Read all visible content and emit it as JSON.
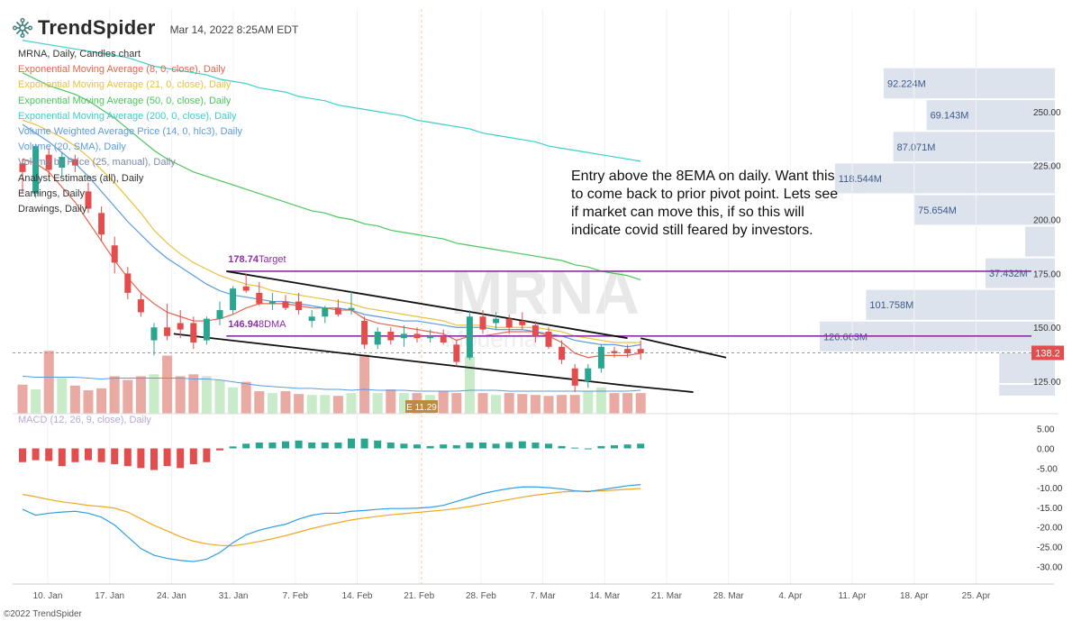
{
  "header": {
    "brand": "TrendSpider",
    "logo_icon": "trendspider-logo-icon",
    "datetime": "Mar 14, 2022 8:25AM EDT"
  },
  "legend": [
    {
      "text": "MRNA, Daily, Candles chart",
      "color": "#333333"
    },
    {
      "text": "Exponential Moving Average (8, 0, close), Daily",
      "color": "#e8644b"
    },
    {
      "text": "Exponential Moving Average (21, 0, close), Daily",
      "color": "#e8c23c"
    },
    {
      "text": "Exponential Moving Average (50, 0, close), Daily",
      "color": "#4cc65e"
    },
    {
      "text": "Exponential Moving Average (200, 0, close), Daily",
      "color": "#3ad1c6"
    },
    {
      "text": "Volume Weighted Average Price (14, 0, hlc3), Daily",
      "color": "#5b9be0"
    },
    {
      "text": "Volume (20, SMA), Daily",
      "color": "#5b9be0"
    },
    {
      "text": "Volume by Price (25, manual), Daily",
      "color": "#7a8aa8"
    },
    {
      "text": "Analyst Estimates (all), Daily",
      "color": "#333333"
    },
    {
      "text": "Earnings, Daily",
      "color": "#333333"
    },
    {
      "text": "Drawings, Daily",
      "color": "#333333"
    }
  ],
  "annotation": "Entry above the 8EMA on daily. Want this to come back to prior pivot point. Lets see if market can move this, if so this will indicate covid still feared by investors.",
  "watermark": {
    "symbol": "MRNA",
    "name": "Moderna"
  },
  "macd_label": "MACD (12, 26, 9, close), Daily",
  "copyright": "©2022 TrendSpider",
  "colors": {
    "up": "#2aa58f",
    "down": "#e34d4d",
    "vol_up": "#c9ebc9",
    "vol_down": "#e8aaa2",
    "purple": "#8b2fa3",
    "vbp": "#dde3ec"
  },
  "chart_data": {
    "type": "candlestick",
    "ylim": [
      110,
      290
    ],
    "price_ticks": [
      125,
      150,
      175,
      200,
      225,
      250
    ],
    "price_tick_labels": [
      "125.00",
      "150.00",
      "175.00",
      "200.00",
      "225.00",
      "250.00"
    ],
    "last_price": 138.2,
    "last_price_label": "138.2",
    "x_labels": [
      "10. Jan",
      "17. Jan",
      "24. Jan",
      "31. Jan",
      "7. Feb",
      "14. Feb",
      "21. Feb",
      "28. Feb",
      "7. Mar",
      "14. Mar",
      "21. Mar",
      "28. Mar",
      "4. Apr",
      "11. Apr",
      "18. Apr",
      "25. Apr"
    ],
    "candles": [
      {
        "o": 226,
        "h": 228,
        "l": 212,
        "c": 222
      },
      {
        "o": 212,
        "h": 235,
        "l": 210,
        "c": 234
      },
      {
        "o": 230,
        "h": 233,
        "l": 220,
        "c": 223
      },
      {
        "o": 224,
        "h": 231,
        "l": 220,
        "c": 229
      },
      {
        "o": 228,
        "h": 230,
        "l": 222,
        "c": 225
      },
      {
        "o": 213,
        "h": 217,
        "l": 203,
        "c": 205
      },
      {
        "o": 203,
        "h": 206,
        "l": 190,
        "c": 193
      },
      {
        "o": 188,
        "h": 192,
        "l": 175,
        "c": 180
      },
      {
        "o": 175,
        "h": 178,
        "l": 163,
        "c": 166
      },
      {
        "o": 163,
        "h": 166,
        "l": 155,
        "c": 157
      },
      {
        "o": 144,
        "h": 152,
        "l": 137,
        "c": 150
      },
      {
        "o": 150,
        "h": 161,
        "l": 144,
        "c": 146
      },
      {
        "o": 152,
        "h": 158,
        "l": 145,
        "c": 149
      },
      {
        "o": 152,
        "h": 155,
        "l": 140,
        "c": 143
      },
      {
        "o": 144,
        "h": 155,
        "l": 142,
        "c": 154
      },
      {
        "o": 154,
        "h": 162,
        "l": 151,
        "c": 158
      },
      {
        "o": 158,
        "h": 169,
        "l": 156,
        "c": 168
      },
      {
        "o": 169,
        "h": 175,
        "l": 166,
        "c": 167
      },
      {
        "o": 166,
        "h": 171,
        "l": 160,
        "c": 161
      },
      {
        "o": 161,
        "h": 166,
        "l": 158,
        "c": 162
      },
      {
        "o": 162,
        "h": 165,
        "l": 158,
        "c": 159
      },
      {
        "o": 162,
        "h": 166,
        "l": 156,
        "c": 158
      },
      {
        "o": 153,
        "h": 158,
        "l": 150,
        "c": 155
      },
      {
        "o": 155,
        "h": 160,
        "l": 152,
        "c": 159
      },
      {
        "o": 159,
        "h": 163,
        "l": 155,
        "c": 156
      },
      {
        "o": 158,
        "h": 167,
        "l": 156,
        "c": 159
      },
      {
        "o": 153,
        "h": 155,
        "l": 140,
        "c": 142
      },
      {
        "o": 142,
        "h": 150,
        "l": 140,
        "c": 148
      },
      {
        "o": 148,
        "h": 150,
        "l": 142,
        "c": 144
      },
      {
        "o": 145,
        "h": 151,
        "l": 141,
        "c": 147
      },
      {
        "o": 147,
        "h": 150,
        "l": 143,
        "c": 145
      },
      {
        "o": 145,
        "h": 149,
        "l": 143,
        "c": 146
      },
      {
        "o": 146,
        "h": 149,
        "l": 142,
        "c": 143
      },
      {
        "o": 142,
        "h": 144,
        "l": 132,
        "c": 134
      },
      {
        "o": 136,
        "h": 158,
        "l": 135,
        "c": 155
      },
      {
        "o": 155,
        "h": 158,
        "l": 147,
        "c": 149
      },
      {
        "o": 152,
        "h": 157,
        "l": 149,
        "c": 154
      },
      {
        "o": 154,
        "h": 156,
        "l": 147,
        "c": 150
      },
      {
        "o": 153,
        "h": 157,
        "l": 149,
        "c": 151
      },
      {
        "o": 151,
        "h": 153,
        "l": 143,
        "c": 146
      },
      {
        "o": 148,
        "h": 150,
        "l": 140,
        "c": 141
      },
      {
        "o": 141,
        "h": 144,
        "l": 133,
        "c": 135
      },
      {
        "o": 131,
        "h": 133,
        "l": 120,
        "c": 123
      },
      {
        "o": 125,
        "h": 133,
        "l": 122,
        "c": 131
      },
      {
        "o": 131,
        "h": 142,
        "l": 129,
        "c": 141
      },
      {
        "o": 139,
        "h": 141,
        "l": 136,
        "c": 138
      },
      {
        "o": 140,
        "h": 142,
        "l": 136,
        "c": 138
      },
      {
        "o": 140,
        "h": 144,
        "l": 135,
        "c": 138
      }
    ],
    "ema8": [
      228,
      226,
      222,
      215,
      208,
      199,
      190,
      181,
      173,
      166,
      161,
      157,
      155,
      153,
      153,
      154,
      156,
      159,
      161,
      161,
      161,
      160,
      159,
      159,
      158,
      158,
      154,
      152,
      151,
      150,
      149,
      148,
      147,
      144,
      146,
      146,
      147,
      148,
      148,
      148,
      146,
      143,
      138,
      136,
      137,
      137,
      137,
      138
    ],
    "ema21": [
      246,
      244,
      241,
      238,
      234,
      229,
      223,
      217,
      210,
      203,
      195,
      189,
      184,
      180,
      177,
      174,
      172,
      170,
      169,
      167,
      166,
      165,
      164,
      163,
      162,
      161,
      159,
      158,
      157,
      156,
      155,
      154,
      153,
      151,
      151,
      151,
      150,
      150,
      150,
      150,
      149,
      148,
      146,
      145,
      144,
      143,
      143,
      143
    ],
    "ema50": [
      268,
      265,
      262,
      260,
      258,
      255,
      251,
      247,
      242,
      237,
      232,
      228,
      225,
      222,
      220,
      218,
      216,
      214,
      212,
      210,
      208,
      206,
      204,
      203,
      201,
      200,
      198,
      197,
      195,
      194,
      193,
      192,
      191,
      189,
      188,
      187,
      186,
      185,
      184,
      183,
      182,
      181,
      179,
      178,
      176,
      175,
      174,
      172
    ],
    "ema200": [
      283,
      282,
      281,
      280,
      279,
      278,
      277,
      276,
      275,
      273,
      271,
      270,
      269,
      268,
      267,
      265,
      264,
      263,
      261,
      260,
      259,
      257,
      256,
      255,
      253,
      252,
      251,
      250,
      249,
      248,
      246,
      245,
      244,
      243,
      242,
      240,
      239,
      238,
      237,
      236,
      234,
      233,
      232,
      231,
      230,
      229,
      228,
      227
    ],
    "vwap": [
      244,
      240,
      236,
      231,
      226,
      220,
      213,
      206,
      199,
      193,
      187,
      182,
      178,
      174,
      170,
      167,
      165,
      164,
      163,
      162,
      162,
      161,
      160,
      159,
      159,
      158,
      156,
      155,
      154,
      153,
      153,
      152,
      151,
      150,
      150,
      150,
      149,
      149,
      149,
      148,
      147,
      146,
      144,
      143,
      142,
      142,
      141,
      142
    ],
    "volume": {
      "values": [
        31,
        26,
        67,
        38,
        30,
        25,
        27,
        40,
        36,
        40,
        42,
        62,
        40,
        42,
        40,
        36,
        28,
        34,
        24,
        22,
        24,
        21,
        20,
        20,
        19,
        22,
        63,
        22,
        26,
        22,
        22,
        20,
        24,
        22,
        61,
        22,
        20,
        22,
        21,
        20,
        19,
        20,
        20,
        24,
        28,
        22,
        22,
        22
      ],
      "sma": [
        40,
        39,
        39,
        39,
        39,
        38,
        37,
        38,
        38,
        38,
        38,
        38,
        38,
        37,
        37,
        36,
        34,
        32,
        30,
        29,
        28,
        27,
        27,
        26,
        26,
        25,
        26,
        25,
        25,
        25,
        24,
        24,
        24,
        24,
        25,
        25,
        25,
        24,
        24,
        24,
        24,
        24,
        24,
        24,
        24,
        24,
        24,
        25
      ],
      "ylim": [
        0,
        75
      ]
    },
    "volume_by_price": [
      {
        "label": "92.224M",
        "value": 92.224,
        "p_low": 255.7,
        "p_high": 270.5
      },
      {
        "label": "69.143M",
        "value": 69.143,
        "p_low": 241.0,
        "p_high": 255.7
      },
      {
        "label": "87.071M",
        "value": 87.071,
        "p_low": 226.4,
        "p_high": 241.0
      },
      {
        "label": "118.544M",
        "value": 118.544,
        "p_low": 211.7,
        "p_high": 226.4
      },
      {
        "label": "75.654M",
        "value": 75.654,
        "p_low": 197.1,
        "p_high": 211.7
      },
      {
        "label": "",
        "value": 16,
        "p_low": 182.4,
        "p_high": 197.1
      },
      {
        "label": "37.432M",
        "value": 37.432,
        "p_low": 167.8,
        "p_high": 182.4
      },
      {
        "label": "101.758M",
        "value": 101.758,
        "p_low": 153.1,
        "p_high": 167.8
      },
      {
        "label": "126.663M",
        "value": 126.663,
        "p_low": 138.5,
        "p_high": 153.1
      },
      {
        "label": "",
        "value": 30,
        "p_low": 123.8,
        "p_high": 138.5
      },
      {
        "label": "",
        "value": 30,
        "p_low": 118.0,
        "p_high": 123.8
      }
    ],
    "hlines": [
      {
        "price": 176,
        "label": "178.74",
        "suffix": "Target",
        "from_index": 15.5
      },
      {
        "price": 146,
        "label": "146.94",
        "suffix": "8DMA",
        "from_index": 15.5
      }
    ],
    "channel": [
      {
        "from": [
          15.5,
          176
        ],
        "to": [
          46,
          145
        ]
      },
      {
        "from": [
          11.5,
          147
        ],
        "to": [
          46,
          123
        ]
      },
      {
        "from": [
          47,
          145
        ],
        "to": [
          53.5,
          136
        ]
      },
      {
        "from": [
          46,
          123
        ],
        "to": [
          51,
          120
        ]
      }
    ],
    "earnings": {
      "index": 30,
      "label": "E 11.29"
    },
    "macd": {
      "ylim": [
        -32,
        7
      ],
      "ticks": [
        5,
        0,
        -5,
        -10,
        -15,
        -20,
        -25,
        -30
      ],
      "tick_labels": [
        "5.00",
        "0.00",
        "-5.00",
        "-10.00",
        "-15.00",
        "-20.00",
        "-25.00",
        "-30.00"
      ],
      "hist": [
        -3.5,
        -3.0,
        -3.2,
        -4.5,
        -3.5,
        -3.0,
        -3.5,
        -4.0,
        -4.5,
        -5.0,
        -5.5,
        -4.5,
        -5.0,
        -4.0,
        -3.5,
        -0.5,
        0.5,
        1.2,
        1.5,
        1.5,
        1.8,
        2.0,
        1.5,
        1.5,
        1.5,
        2.5,
        2.5,
        2.0,
        1.5,
        1.2,
        1.0,
        0.6,
        1.0,
        0.8,
        1.5,
        1.5,
        1.2,
        1.6,
        1.8,
        1.5,
        1.2,
        0.6,
        0.2,
        0.0,
        0.6,
        0.8,
        1.0,
        1.2
      ],
      "macd": [
        -15.5,
        -17,
        -16.5,
        -16.2,
        -16,
        -16.5,
        -17.5,
        -19.5,
        -22.5,
        -25.5,
        -27.2,
        -28,
        -28.5,
        -28.8,
        -28.2,
        -26.5,
        -24,
        -22,
        -20.8,
        -20,
        -19.3,
        -18,
        -17,
        -16.5,
        -16.5,
        -16,
        -15.8,
        -15.5,
        -15.3,
        -15.3,
        -15.2,
        -15,
        -14.5,
        -13.5,
        -12.5,
        -11.5,
        -10.8,
        -10.2,
        -9.8,
        -9.8,
        -10,
        -10.3,
        -10.8,
        -11,
        -10.5,
        -10,
        -9.5,
        -9.2
      ],
      "signal": [
        -11.7,
        -12.3,
        -13.0,
        -13.6,
        -14.0,
        -14.5,
        -14.8,
        -15.2,
        -16.2,
        -17.9,
        -19.6,
        -21.0,
        -22.5,
        -23.6,
        -24.3,
        -24.7,
        -24.8,
        -24.3,
        -23.7,
        -23.0,
        -22.2,
        -21.3,
        -20.4,
        -19.6,
        -18.9,
        -18.2,
        -17.7,
        -17.3,
        -16.9,
        -16.6,
        -16.3,
        -16.0,
        -15.7,
        -15.3,
        -14.8,
        -14.2,
        -13.6,
        -13.0,
        -12.4,
        -11.9,
        -11.5,
        -11.1,
        -10.9,
        -10.9,
        -10.8,
        -10.6,
        -10.4,
        -10.2
      ]
    }
  }
}
